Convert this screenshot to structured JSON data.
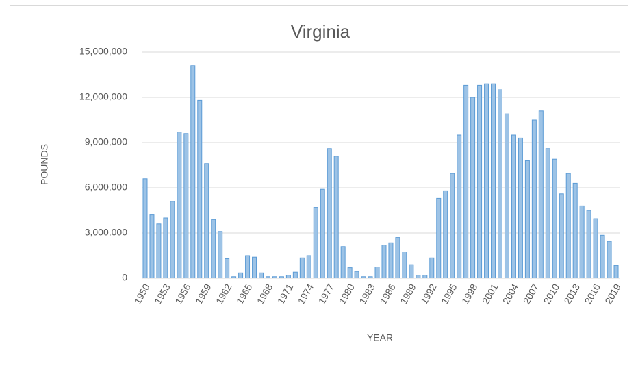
{
  "chart_data": {
    "type": "bar",
    "title": "Virginia",
    "x_label": "YEAR",
    "y_label": "POUNDS",
    "categories": [
      "1950",
      null,
      null,
      "1953",
      null,
      null,
      "1956",
      null,
      null,
      "1959",
      null,
      null,
      "1962",
      null,
      null,
      "1965",
      null,
      null,
      "1968",
      null,
      null,
      "1971",
      null,
      null,
      "1974",
      null,
      null,
      "1977",
      null,
      null,
      "1980",
      null,
      null,
      "1983",
      null,
      null,
      "1986",
      null,
      null,
      "1989",
      null,
      null,
      "1992",
      null,
      null,
      "1995",
      null,
      null,
      "1998",
      null,
      null,
      "2001",
      null,
      null,
      "2004",
      null,
      null,
      "2007",
      null,
      null,
      "2010",
      null,
      null,
      "2013",
      null,
      null,
      "2016",
      null,
      null,
      "2019"
    ],
    "values": [
      6600000,
      4200000,
      3600000,
      4000000,
      5100000,
      9700000,
      9600000,
      14100000,
      11800000,
      7600000,
      3900000,
      3100000,
      1300000,
      100000,
      350000,
      1500000,
      1400000,
      350000,
      100000,
      100000,
      100000,
      200000,
      400000,
      1350000,
      1500000,
      4700000,
      5900000,
      8600000,
      8100000,
      2100000,
      700000,
      450000,
      100000,
      100000,
      750000,
      2200000,
      2350000,
      2700000,
      1750000,
      900000,
      200000,
      200000,
      1350000,
      5300000,
      5800000,
      6950000,
      9500000,
      12800000,
      12000000,
      12800000,
      12900000,
      12900000,
      12500000,
      10900000,
      9500000,
      9300000,
      7800000,
      10500000,
      11100000,
      8600000,
      7900000,
      5600000,
      6950000,
      6300000,
      4800000,
      4500000,
      3950000,
      2850000,
      2450000,
      850000
    ],
    "color": "#9dc3e6",
    "edge_color": "#5b9bd5",
    "ylim": [
      0,
      15000000
    ],
    "yticks": [
      0,
      {
        "value": 3000000,
        "label": "3,000,000"
      },
      {
        "value": 6000000,
        "label": "6,000,000"
      },
      {
        "value": 9000000,
        "label": "9,000,000"
      },
      {
        "value": 12000000,
        "label": "12,000,000"
      },
      {
        "value": 15000000,
        "label": "15,000,000"
      }
    ],
    "grid": true
  }
}
